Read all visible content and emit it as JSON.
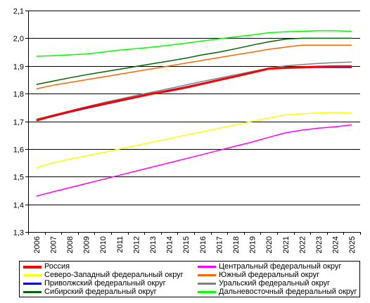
{
  "chart_data": {
    "type": "line",
    "title": "",
    "xlabel": "",
    "ylabel": "",
    "categories": [
      "2006",
      "2007",
      "2008",
      "2009",
      "2010",
      "2011",
      "2012",
      "2013",
      "2014",
      "2015",
      "2016",
      "2017",
      "2018",
      "2019",
      "2020",
      "2021",
      "2022",
      "2023",
      "2024",
      "2025"
    ],
    "ylim": [
      1.3,
      2.1
    ],
    "yticks": [
      1.3,
      1.4,
      1.5,
      1.6,
      1.7,
      1.8,
      1.9,
      2.0,
      2.1
    ],
    "ytick_labels": [
      "1,3",
      "1,4",
      "1,5",
      "1,6",
      "1,7",
      "1,8",
      "1,9",
      "2,0",
      "2,1"
    ],
    "grid": "horizontal",
    "legend_position": "bottom",
    "series": [
      {
        "name": "Россия",
        "color": "#ff0000",
        "width": 3,
        "values": [
          1.703,
          1.72,
          1.735,
          1.75,
          1.762,
          1.775,
          1.787,
          1.8,
          1.81,
          1.822,
          1.835,
          1.849,
          1.862,
          1.876,
          1.89,
          1.893,
          1.895,
          1.897,
          1.898,
          1.898
        ]
      },
      {
        "name": "Центральный федеральный округ",
        "color": "#ff00ff",
        "width": 1.5,
        "values": [
          1.43,
          1.445,
          1.46,
          1.475,
          1.49,
          1.505,
          1.52,
          1.535,
          1.55,
          1.565,
          1.58,
          1.595,
          1.61,
          1.625,
          1.642,
          1.658,
          1.668,
          1.675,
          1.68,
          1.687
        ]
      },
      {
        "name": "Северо-Западный федеральный округ",
        "color": "#ffff00",
        "width": 1.5,
        "values": [
          1.532,
          1.55,
          1.563,
          1.575,
          1.587,
          1.6,
          1.612,
          1.625,
          1.637,
          1.65,
          1.662,
          1.675,
          1.687,
          1.7,
          1.712,
          1.723,
          1.727,
          1.73,
          1.732,
          1.73
        ]
      },
      {
        "name": "Южный федеральный округ",
        "color": "#ff6600",
        "width": 1.5,
        "values": [
          1.817,
          1.83,
          1.84,
          1.85,
          1.86,
          1.87,
          1.88,
          1.89,
          1.9,
          1.91,
          1.92,
          1.93,
          1.94,
          1.95,
          1.96,
          1.968,
          1.975,
          1.975,
          1.975,
          1.975
        ]
      },
      {
        "name": "Приволжский федеральный округ",
        "color": "#0000cc",
        "width": 2,
        "values": [
          1.703,
          1.718,
          1.733,
          1.747,
          1.76,
          1.773,
          1.786,
          1.8,
          1.812,
          1.824,
          1.837,
          1.85,
          1.863,
          1.877,
          1.89,
          1.893,
          1.895,
          1.895,
          1.895,
          1.895
        ]
      },
      {
        "name": "Уральский федеральный округ",
        "color": "#808080",
        "width": 1.5,
        "values": [
          1.708,
          1.722,
          1.737,
          1.752,
          1.767,
          1.78,
          1.793,
          1.806,
          1.818,
          1.831,
          1.844,
          1.856,
          1.868,
          1.88,
          1.892,
          1.9,
          1.905,
          1.909,
          1.912,
          1.914
        ]
      },
      {
        "name": "Сибирский федеральный округ",
        "color": "#006600",
        "width": 1.5,
        "values": [
          1.833,
          1.845,
          1.857,
          1.868,
          1.878,
          1.888,
          1.898,
          1.908,
          1.918,
          1.928,
          1.94,
          1.95,
          1.962,
          1.975,
          1.987,
          1.997,
          2.0,
          2.0,
          2.0,
          2.0
        ]
      },
      {
        "name": "Дальневосточный федеральный округ",
        "color": "#00ff00",
        "width": 1.5,
        "values": [
          1.935,
          1.937,
          1.94,
          1.943,
          1.95,
          1.957,
          1.962,
          1.968,
          1.975,
          1.982,
          1.99,
          1.998,
          2.005,
          2.012,
          2.02,
          2.023,
          2.025,
          2.027,
          2.027,
          2.025
        ]
      }
    ]
  }
}
